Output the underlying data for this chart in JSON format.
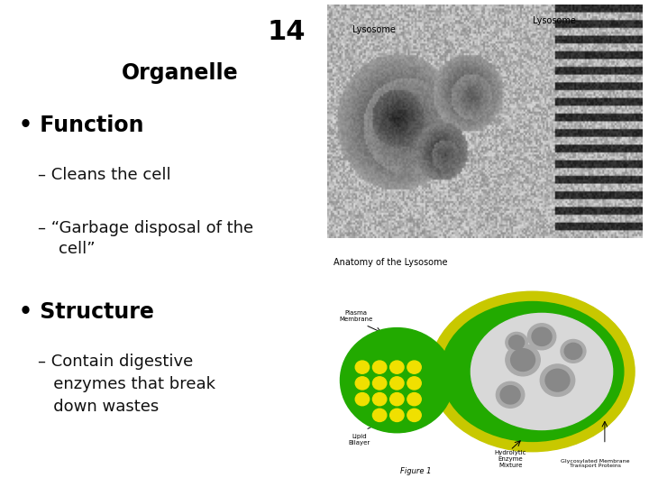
{
  "background_color": "#ffffff",
  "number": "14",
  "number_fontsize": 22,
  "organelle_text": "Organelle",
  "organelle_fontsize": 17,
  "bullet1_text": "Function",
  "bullet1_fontsize": 17,
  "sub1a_text": "– Cleans the cell",
  "sub1a_fontsize": 13,
  "sub1b_line1": "– “Garbage disposal of the",
  "sub1b_line2": "    cell”",
  "sub1b_fontsize": 13,
  "bullet2_text": "Structure",
  "bullet2_fontsize": 17,
  "sub2_line1": "– Contain digestive",
  "sub2_line2": "   enzymes that break",
  "sub2_line3": "   down wastes",
  "sub2_fontsize": 13,
  "text_color": "#000000",
  "bold_color": "#000000",
  "sub_color": "#111111"
}
